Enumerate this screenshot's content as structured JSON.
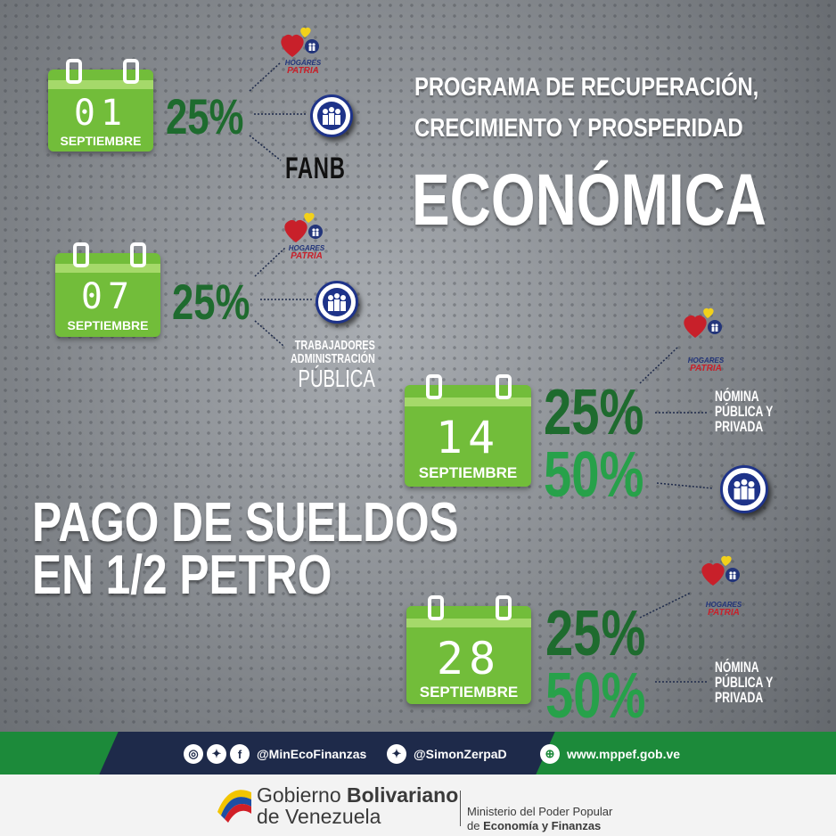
{
  "title": {
    "line1": "PROGRAMA DE RECUPERACIÓN,",
    "line2": "CRECIMIENTO Y PROSPERIDAD",
    "line3": "ECONÓMICA"
  },
  "headline": {
    "line1": "PAGO DE SUELDOS",
    "line2": "EN 1/2 PETRO"
  },
  "logo_text": {
    "hogares": "HOGARES",
    "patria": "PATRIA"
  },
  "schedule": [
    {
      "day": "01",
      "month": "SEPTIEMBRE",
      "percents": [
        "25%"
      ],
      "labels": [
        "FANB"
      ]
    },
    {
      "day": "07",
      "month": "SEPTIEMBRE",
      "percents": [
        "25%"
      ],
      "labels": [
        "TRABAJADORES",
        "ADMINISTRACIÓN",
        "PÚBLICA"
      ]
    },
    {
      "day": "14",
      "month": "SEPTIEMBRE",
      "percents": [
        "25%",
        "50%"
      ],
      "labels": [
        "NÓMINA",
        "PÚBLICA Y",
        "PRIVADA"
      ]
    },
    {
      "day": "28",
      "month": "SEPTIEMBRE",
      "percents": [
        "25%",
        "50%"
      ],
      "labels": [
        "NÓMINA",
        "PÚBLICA Y",
        "PRIVADA"
      ]
    }
  ],
  "footer": {
    "social1": "@MinEcoFinanzas",
    "social2": "@SimonZerpaD",
    "website": "www.mppef.gob.ve",
    "gov_line1_a": "Gobierno ",
    "gov_line1_b": "Bolivariano",
    "gov_line2": "de Venezuela",
    "ministry_line1": "Ministerio del Poder Popular",
    "ministry_line2_a": "de ",
    "ministry_line2_b": "Economía y Finanzas"
  },
  "colors": {
    "calendar_green": "#72bd3a",
    "percent_dark_green": "#1e6b2e",
    "percent_light_green": "#27a14a",
    "footer_green": "#1c8a3a",
    "footer_navy": "#1e2a4a"
  }
}
